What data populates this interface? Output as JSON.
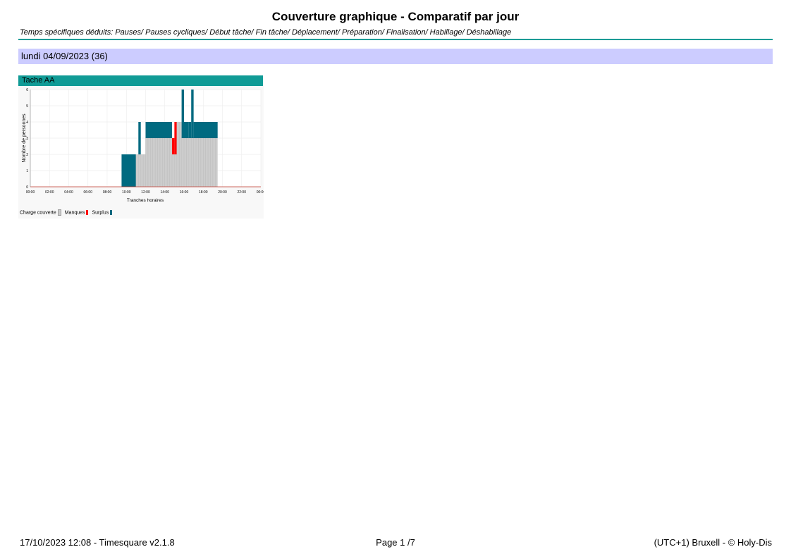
{
  "header": {
    "title": "Couverture graphique - Comparatif par jour",
    "subtitle": "Temps spécifiques déduits: Pauses/ Pauses cycliques/ Début tâche/ Fin tâche/ Déplacement/ Préparation/ Finalisation/ Habillage/ Déshabillage"
  },
  "day_label": "lundi 04/09/2023 (36)",
  "chart_data": {
    "type": "bar",
    "stacked": true,
    "panel_title": "Tache AA",
    "xlabel": "Tranches horaires",
    "ylabel": "Nombre de personnes",
    "ylim": [
      0,
      6
    ],
    "xlim": [
      0,
      24
    ],
    "y_ticks": [
      "0",
      "1",
      "2",
      "3",
      "4",
      "5",
      "6"
    ],
    "x_ticks": [
      "00:00",
      "02:00",
      "04:00",
      "06:00",
      "08:00",
      "10:00",
      "12:00",
      "14:00",
      "16:00",
      "18:00",
      "20:00",
      "22:00",
      "00:00"
    ],
    "grid": true,
    "legend_position": "bottom-left",
    "colors": {
      "covered": "#cccccc",
      "missing": "#ff0000",
      "surplus": "#006a80",
      "baseline": "#c0392b"
    },
    "segments": [
      {
        "start": 9.5,
        "end": 11.0,
        "covered": 0,
        "missing": 0,
        "surplus": 2
      },
      {
        "start": 11.0,
        "end": 11.25,
        "covered": 2,
        "missing": 0,
        "surplus": 0
      },
      {
        "start": 11.25,
        "end": 11.5,
        "covered": 2,
        "missing": 0,
        "surplus": 2
      },
      {
        "start": 11.5,
        "end": 12.0,
        "covered": 2,
        "missing": 0,
        "surplus": 0
      },
      {
        "start": 12.0,
        "end": 14.75,
        "covered": 3,
        "missing": 0,
        "surplus": 1
      },
      {
        "start": 14.75,
        "end": 15.0,
        "covered": 2,
        "missing": 1,
        "surplus": 0
      },
      {
        "start": 15.0,
        "end": 15.25,
        "covered": 2,
        "missing": 2,
        "surplus": 0
      },
      {
        "start": 15.25,
        "end": 15.75,
        "covered": 4,
        "missing": 0,
        "surplus": 0
      },
      {
        "start": 15.75,
        "end": 16.0,
        "covered": 3,
        "missing": 0,
        "surplus": 3
      },
      {
        "start": 16.0,
        "end": 16.5,
        "covered": 3,
        "missing": 0,
        "surplus": 1
      },
      {
        "start": 16.5,
        "end": 16.75,
        "covered": 3,
        "missing": 0,
        "surplus": 1
      },
      {
        "start": 16.75,
        "end": 17.0,
        "covered": 3,
        "missing": 0,
        "surplus": 3
      },
      {
        "start": 17.0,
        "end": 19.5,
        "covered": 3,
        "missing": 0,
        "surplus": 1
      }
    ],
    "legend": [
      {
        "label": "Charge couverte",
        "key": "covered"
      },
      {
        "label": "Manques",
        "key": "missing"
      },
      {
        "label": "Surplus",
        "key": "surplus"
      }
    ]
  },
  "footer": {
    "left": "17/10/2023 12:08 - Timesquare v2.1.8",
    "center": "Page 1 /7",
    "right": "(UTC+1) Bruxell - © Holy-Dis"
  }
}
